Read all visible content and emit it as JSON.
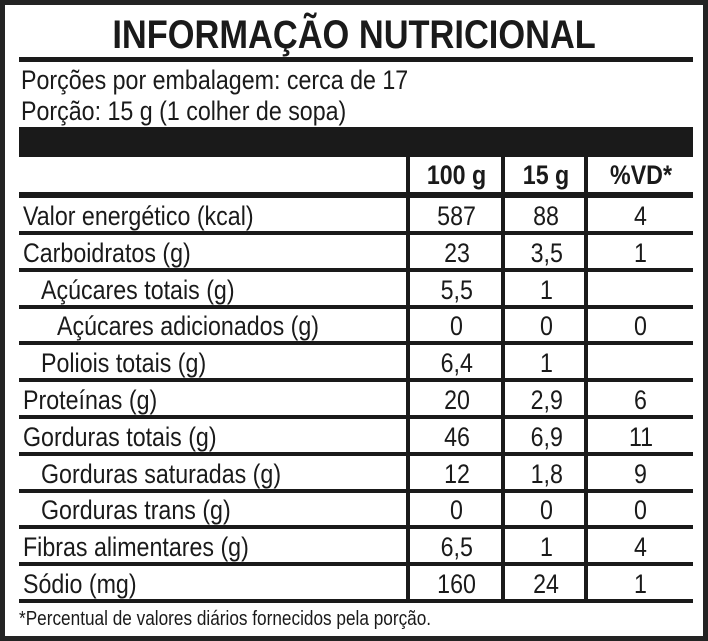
{
  "title": "INFORMAÇÃO NUTRICIONAL",
  "servings_per_package": "Porções por embalagem: cerca de 17",
  "serving_size": "Porção: 15 g (1 colher de sopa)",
  "columns": [
    "100 g",
    "15 g",
    "%VD*"
  ],
  "rows": [
    {
      "name": "Valor energético (kcal)",
      "v100": "587",
      "vport": "88",
      "vd": "4",
      "indent": 0
    },
    {
      "name": "Carboidratos (g)",
      "v100": "23",
      "vport": "3,5",
      "vd": "1",
      "indent": 0
    },
    {
      "name": "Açúcares totais (g)",
      "v100": "5,5",
      "vport": "1",
      "vd": "",
      "indent": 1
    },
    {
      "name": "Açúcares adicionados (g)",
      "v100": "0",
      "vport": "0",
      "vd": "0",
      "indent": 2
    },
    {
      "name": "Poliois totais (g)",
      "v100": "6,4",
      "vport": "1",
      "vd": "",
      "indent": 1
    },
    {
      "name": "Proteínas (g)",
      "v100": "20",
      "vport": "2,9",
      "vd": "6",
      "indent": 0
    },
    {
      "name": "Gorduras totais (g)",
      "v100": "46",
      "vport": "6,9",
      "vd": "11",
      "indent": 0
    },
    {
      "name": "Gorduras saturadas (g)",
      "v100": "12",
      "vport": "1,8",
      "vd": "9",
      "indent": 1
    },
    {
      "name": "Gorduras trans (g)",
      "v100": "0",
      "vport": "0",
      "vd": "0",
      "indent": 1
    },
    {
      "name": "Fibras alimentares (g)",
      "v100": "6,5",
      "vport": "1",
      "vd": "4",
      "indent": 0
    },
    {
      "name": "Sódio (mg)",
      "v100": "160",
      "vport": "24",
      "vd": "1",
      "indent": 0
    }
  ],
  "footnote": "*Percentual de valores diários fornecidos pela porção."
}
